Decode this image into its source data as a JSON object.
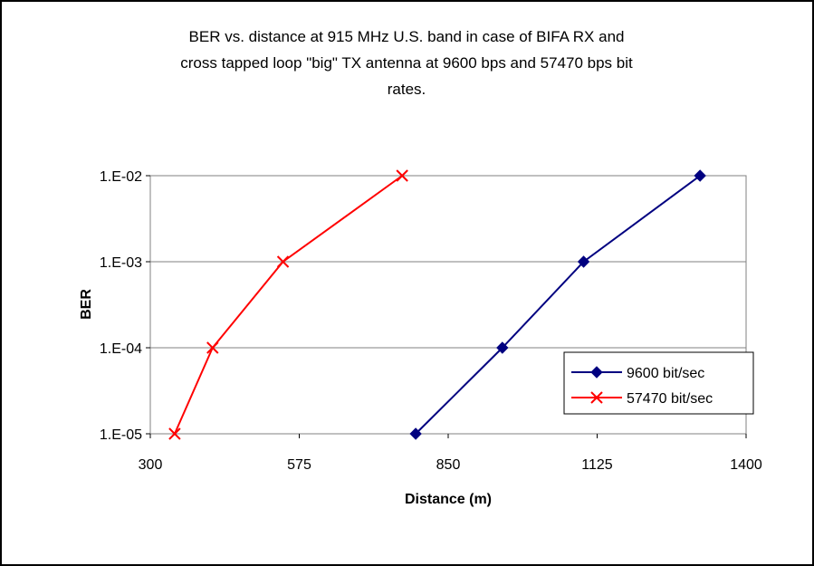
{
  "chart_data": {
    "type": "line",
    "title_lines": [
      "BER vs. distance at 915 MHz U.S. band in case of BIFA RX and",
      "cross tapped loop \"big\"  TX antenna at 9600 bps and 57470 bps bit",
      "rates."
    ],
    "xlabel": "Distance (m)",
    "ylabel": "BER",
    "xlim": [
      300,
      1400
    ],
    "x_ticks": [
      300,
      575,
      850,
      1125,
      1400
    ],
    "x_tick_labels": [
      "300",
      "575",
      "850",
      "1125",
      "1400"
    ],
    "y_scale": "log",
    "ylim": [
      1e-05,
      0.01
    ],
    "y_ticks": [
      1e-05,
      0.0001,
      0.001,
      0.01
    ],
    "y_tick_labels": [
      "1.E-05",
      "1.E-04",
      "1.E-03",
      "1.E-02"
    ],
    "grid": "horizontal",
    "legend_position": "bottom-right",
    "series": [
      {
        "name": "9600 bit/sec",
        "color": "#000080",
        "marker": "diamond",
        "x": [
          790,
          950,
          1100,
          1315
        ],
        "y": [
          1e-05,
          0.0001,
          0.001,
          0.01
        ]
      },
      {
        "name": "57470 bit/sec",
        "color": "#ff0000",
        "marker": "x",
        "x": [
          345,
          415,
          545,
          765
        ],
        "y": [
          1e-05,
          0.0001,
          0.001,
          0.01
        ]
      }
    ]
  }
}
